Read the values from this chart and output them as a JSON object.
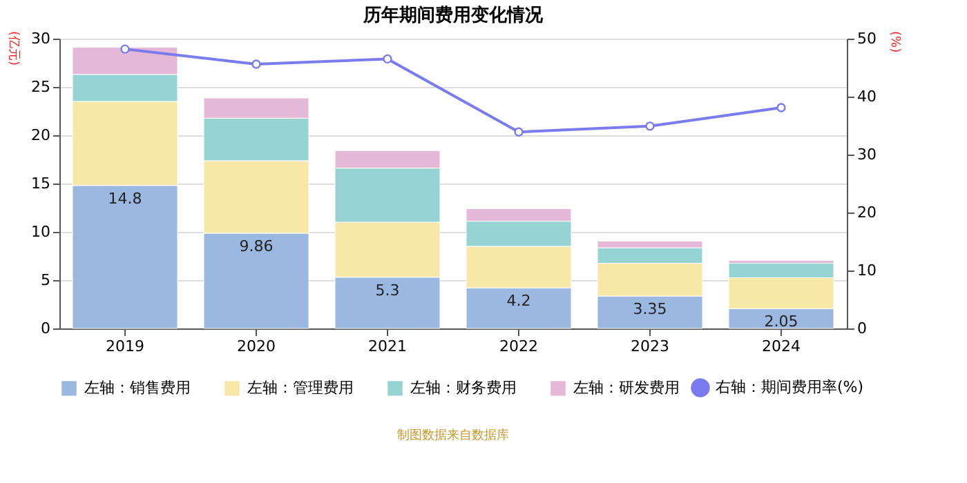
{
  "chart_data": {
    "type": "bar",
    "stacked": true,
    "title": "历年期间费用变化情况",
    "ylabel": "(亿元)",
    "y2label": "(%)",
    "categories": [
      "2019",
      "2020",
      "2021",
      "2022",
      "2023",
      "2024"
    ],
    "series": [
      {
        "name": "左轴：销售费用",
        "color": "#9bb8e0",
        "values": [
          14.8,
          9.86,
          5.3,
          4.2,
          3.35,
          2.05
        ],
        "value_labels": [
          "14.8",
          "9.86",
          "5.3",
          "4.2",
          "3.35",
          "2.05"
        ]
      },
      {
        "name": "左轴：管理费用",
        "color": "#f8e8a8",
        "values": [
          8.7,
          7.5,
          5.7,
          4.3,
          3.4,
          3.2
        ]
      },
      {
        "name": "左轴：财务费用",
        "color": "#96d4d4",
        "values": [
          2.8,
          4.4,
          5.6,
          2.6,
          1.6,
          1.5
        ]
      },
      {
        "name": "左轴：研发费用",
        "color": "#e6b8d8",
        "values": [
          2.8,
          2.1,
          1.8,
          1.3,
          0.7,
          0.3
        ]
      },
      {
        "name": "右轴：期间费用率(%)",
        "type": "line",
        "axis": "y2",
        "marker": "circle",
        "color": "#7b7bf0",
        "values": [
          48.2,
          45.6,
          46.5,
          33.9,
          34.9,
          38.1
        ]
      }
    ],
    "ylim": [
      0,
      30
    ],
    "yticks": [
      0,
      5,
      10,
      15,
      20,
      25,
      30
    ],
    "y2lim": [
      0,
      50
    ],
    "y2ticks": [
      0,
      10,
      20,
      30,
      40,
      50
    ],
    "grid": "y",
    "legend": "bottom",
    "annotations": [
      "制图数据来自数据库"
    ]
  }
}
